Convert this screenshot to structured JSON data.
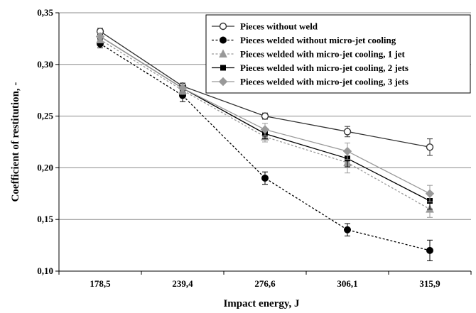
{
  "chart_data": {
    "type": "line",
    "title": "",
    "xlabel": "Impact energy, J",
    "ylabel": "Coefficient of restitution, -",
    "categories": [
      "178,5",
      "239,4",
      "276,6",
      "306,1",
      "315,9"
    ],
    "ylim": [
      0.1,
      0.35
    ],
    "yticks": [
      0.1,
      0.15,
      0.2,
      0.25,
      0.3,
      0.35
    ],
    "ytick_labels": [
      "0,10",
      "0,15",
      "0,20",
      "0,25",
      "0,30",
      "0,35"
    ],
    "grid": "horizontal",
    "legend_position": "top-right",
    "series": [
      {
        "name": "Pieces without weld",
        "values": [
          0.332,
          0.279,
          0.25,
          0.235,
          0.22
        ],
        "errors": [
          0.003,
          0.003,
          0.003,
          0.005,
          0.008
        ],
        "color": "#333333",
        "marker": "circle-open",
        "line_style": "solid"
      },
      {
        "name": "Pieces welded without micro-jet cooling",
        "values": [
          0.32,
          0.27,
          0.19,
          0.14,
          0.12
        ],
        "errors": [
          0.004,
          0.006,
          0.006,
          0.006,
          0.01
        ],
        "color": "#000000",
        "marker": "circle",
        "line_style": "dashed"
      },
      {
        "name": "Pieces welded with micro-jet cooling, 1 jet",
        "values": [
          0.324,
          0.275,
          0.23,
          0.205,
          0.16
        ],
        "errors": [
          0.003,
          0.004,
          0.005,
          0.01,
          0.008
        ],
        "color": "#999999",
        "marker": "triangle",
        "line_style": "dashed"
      },
      {
        "name": "Pieces welded with micro-jet cooling, 2 jets",
        "values": [
          0.327,
          0.277,
          0.233,
          0.209,
          0.168
        ],
        "errors": [
          0.003,
          0.004,
          0.005,
          0.008,
          0.008
        ],
        "color": "#000000",
        "marker": "square",
        "line_style": "solid"
      },
      {
        "name": "Pieces welded with micro-jet cooling, 3 jets",
        "values": [
          0.327,
          0.277,
          0.237,
          0.216,
          0.175
        ],
        "errors": [
          0.003,
          0.004,
          0.006,
          0.008,
          0.008
        ],
        "color": "#999999",
        "marker": "diamond",
        "line_style": "solid"
      }
    ]
  }
}
